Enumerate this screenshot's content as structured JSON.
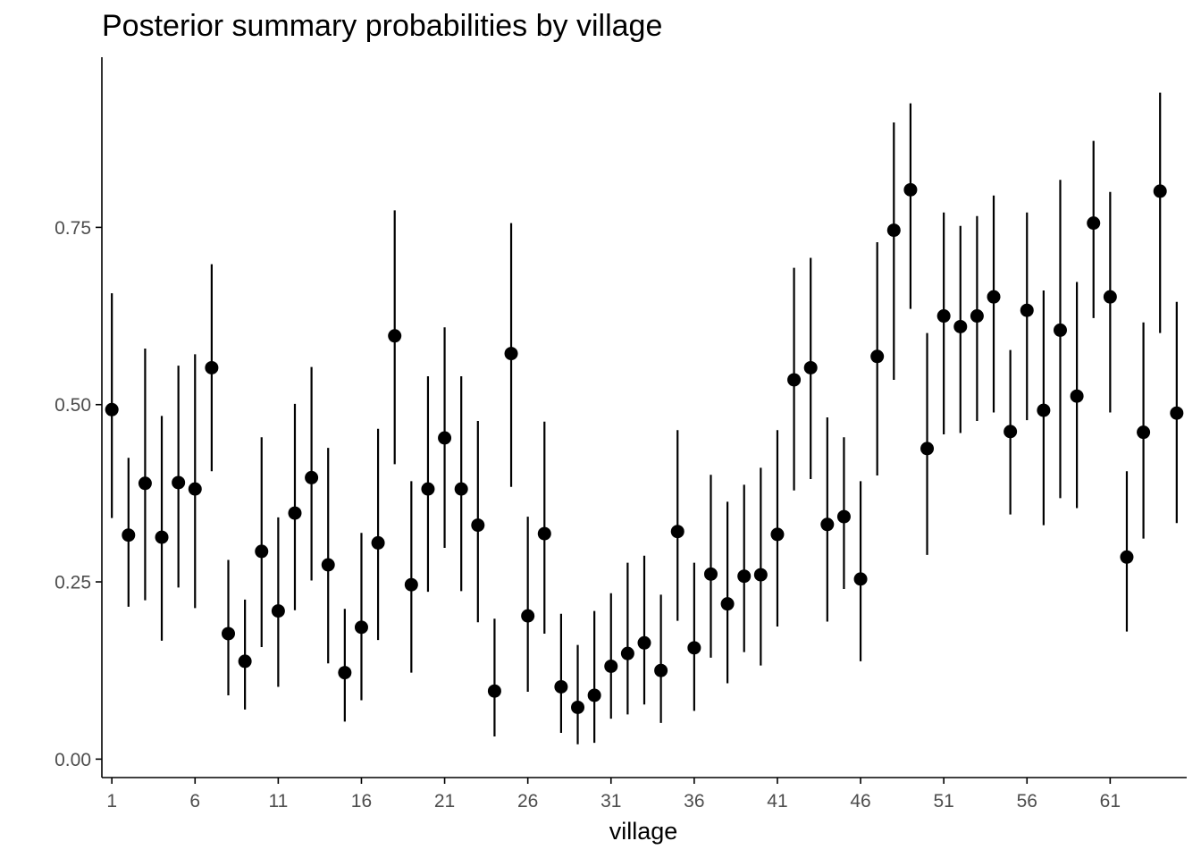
{
  "chart_data": {
    "type": "scatter",
    "title": "Posterior summary probabilities by village",
    "xlabel": "village",
    "ylabel": "",
    "x_ticks": [
      1,
      6,
      11,
      16,
      21,
      26,
      31,
      36,
      41,
      46,
      51,
      56,
      61
    ],
    "y_ticks": [
      "0.00",
      "0.25",
      "0.50",
      "0.75"
    ],
    "xlim": [
      0.4,
      65.6
    ],
    "ylim": [
      -0.026,
      0.99
    ],
    "grid": false,
    "legend": "none",
    "colors": {
      "point": "#000000",
      "interval": "#000000",
      "axis": "#000000",
      "tick_label": "#4d4d4d"
    },
    "series": [
      {
        "village": [
          1,
          2,
          3,
          4,
          5,
          6,
          7,
          8,
          9,
          10,
          11,
          12,
          13,
          14,
          15,
          16,
          17,
          18,
          19,
          20,
          21,
          22,
          23,
          24,
          25,
          26,
          27,
          28,
          29,
          30,
          31,
          32,
          33,
          34,
          35,
          36,
          37,
          38,
          39,
          40,
          41,
          42,
          43,
          44,
          45,
          46,
          47,
          48,
          49,
          50,
          51,
          52,
          53,
          54,
          55,
          56,
          57,
          58,
          59,
          60,
          61,
          62,
          63,
          64,
          65
        ],
        "estimate": [
          0.493,
          0.316,
          0.389,
          0.313,
          0.39,
          0.381,
          0.552,
          0.177,
          0.138,
          0.293,
          0.209,
          0.347,
          0.397,
          0.274,
          0.122,
          0.186,
          0.305,
          0.597,
          0.246,
          0.381,
          0.453,
          0.381,
          0.33,
          0.096,
          0.572,
          0.202,
          0.318,
          0.102,
          0.073,
          0.09,
          0.131,
          0.149,
          0.164,
          0.125,
          0.321,
          0.157,
          0.261,
          0.219,
          0.258,
          0.26,
          0.317,
          0.535,
          0.552,
          0.331,
          0.342,
          0.254,
          0.568,
          0.746,
          0.803,
          0.438,
          0.625,
          0.61,
          0.625,
          0.652,
          0.462,
          0.633,
          0.492,
          0.605,
          0.512,
          0.756,
          0.652,
          0.285,
          0.461,
          0.801,
          0.488
        ],
        "lower": [
          0.34,
          0.215,
          0.224,
          0.167,
          0.242,
          0.213,
          0.406,
          0.09,
          0.07,
          0.158,
          0.102,
          0.21,
          0.252,
          0.135,
          0.053,
          0.083,
          0.168,
          0.416,
          0.122,
          0.236,
          0.298,
          0.237,
          0.193,
          0.032,
          0.384,
          0.095,
          0.177,
          0.037,
          0.021,
          0.023,
          0.057,
          0.063,
          0.077,
          0.051,
          0.195,
          0.068,
          0.143,
          0.107,
          0.151,
          0.132,
          0.187,
          0.379,
          0.395,
          0.194,
          0.24,
          0.138,
          0.4,
          0.535,
          0.635,
          0.288,
          0.458,
          0.46,
          0.477,
          0.489,
          0.345,
          0.478,
          0.33,
          0.368,
          0.354,
          0.622,
          0.489,
          0.18,
          0.311,
          0.601,
          0.333
        ],
        "upper": [
          0.657,
          0.425,
          0.579,
          0.484,
          0.555,
          0.571,
          0.698,
          0.281,
          0.225,
          0.454,
          0.341,
          0.501,
          0.553,
          0.439,
          0.212,
          0.319,
          0.466,
          0.774,
          0.392,
          0.54,
          0.609,
          0.54,
          0.477,
          0.198,
          0.756,
          0.342,
          0.476,
          0.205,
          0.161,
          0.209,
          0.234,
          0.277,
          0.287,
          0.232,
          0.464,
          0.277,
          0.401,
          0.363,
          0.387,
          0.411,
          0.464,
          0.693,
          0.707,
          0.482,
          0.454,
          0.392,
          0.729,
          0.898,
          0.925,
          0.601,
          0.771,
          0.752,
          0.766,
          0.795,
          0.577,
          0.771,
          0.661,
          0.817,
          0.673,
          0.872,
          0.8,
          0.406,
          0.616,
          0.94,
          0.645
        ]
      }
    ]
  }
}
